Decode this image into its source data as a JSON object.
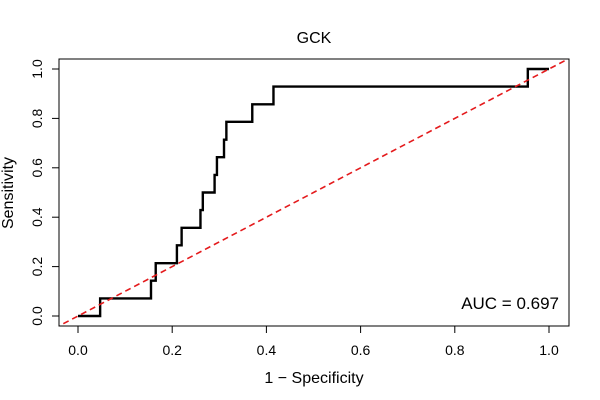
{
  "chart_data": {
    "type": "line",
    "title": "GCK",
    "xlabel": "1 − Specificity",
    "ylabel": "Sensitivity",
    "xlim": [
      0,
      1
    ],
    "ylim": [
      0,
      1
    ],
    "xticks": [
      0.0,
      0.2,
      0.4,
      0.6,
      0.8,
      1.0
    ],
    "xtick_labels": [
      "0.0",
      "0.2",
      "0.4",
      "0.6",
      "0.8",
      "1.0"
    ],
    "yticks": [
      0.0,
      0.2,
      0.4,
      0.6,
      0.8,
      1.0
    ],
    "ytick_labels": [
      "0.0",
      "0.2",
      "0.4",
      "0.6",
      "0.8",
      "1.0"
    ],
    "grid": false,
    "annotation": "AUC = 0.697",
    "series": [
      {
        "name": "ROC curve",
        "color": "#000000",
        "style": "step",
        "x": [
          0.0,
          0.047,
          0.047,
          0.155,
          0.155,
          0.165,
          0.165,
          0.21,
          0.21,
          0.22,
          0.22,
          0.245,
          0.245,
          0.26,
          0.26,
          0.265,
          0.265,
          0.29,
          0.29,
          0.295,
          0.295,
          0.3,
          0.3,
          0.31,
          0.31,
          0.315,
          0.315,
          0.37,
          0.37,
          0.415,
          0.415,
          0.955,
          0.955,
          1.0
        ],
        "y": [
          0.0,
          0.0,
          0.071,
          0.071,
          0.143,
          0.143,
          0.214,
          0.214,
          0.286,
          0.286,
          0.357,
          0.357,
          0.357,
          0.357,
          0.429,
          0.429,
          0.5,
          0.5,
          0.571,
          0.571,
          0.643,
          0.643,
          0.643,
          0.643,
          0.714,
          0.714,
          0.786,
          0.786,
          0.857,
          0.857,
          0.929,
          0.929,
          1.0,
          1.0
        ]
      },
      {
        "name": "Reference diagonal",
        "color": "#e41a1c",
        "style": "dashed",
        "x": [
          0.0,
          1.0
        ],
        "y": [
          0.0,
          1.0
        ]
      }
    ]
  }
}
